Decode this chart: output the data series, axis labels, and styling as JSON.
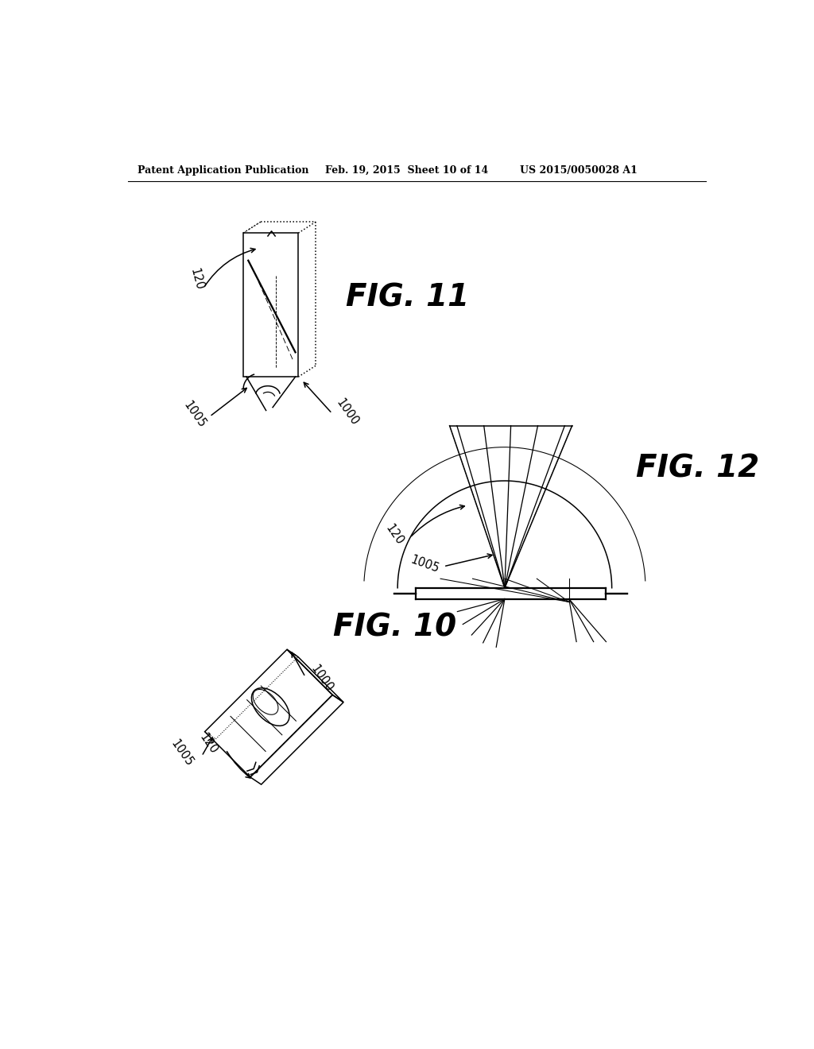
{
  "bg_color": "#ffffff",
  "header_left": "Patent Application Publication",
  "header_mid": "Feb. 19, 2015  Sheet 10 of 14",
  "header_right": "US 2015/0050028 A1",
  "fig10_label": "FIG. 10",
  "fig11_label": "FIG. 11",
  "fig12_label": "FIG. 12",
  "label_120": "120",
  "label_1005": "1005",
  "label_1000": "1000",
  "line_color": "#000000",
  "lw": 1.1,
  "lw_thick": 1.6,
  "dotted_lw": 0.7
}
